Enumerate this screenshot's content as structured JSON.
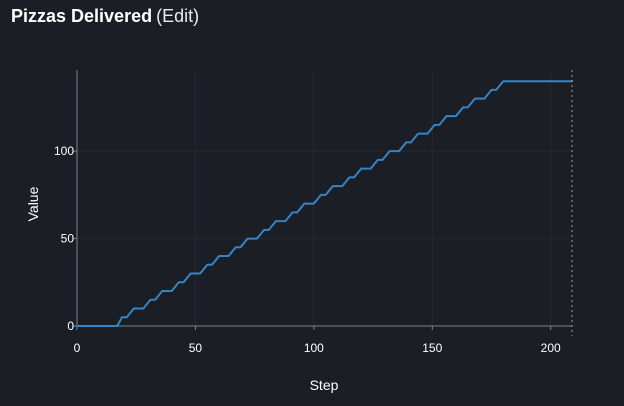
{
  "header": {
    "title": "Pizzas Delivered",
    "edit_label": "(Edit)"
  },
  "colors": {
    "background": "#1b1e25",
    "series_line": "#3584c6",
    "axis_line": "#7d818a",
    "grid_line": "#262a31",
    "cursor_line": "#9a9ea6",
    "text": "#ffffff"
  },
  "chart_data": {
    "type": "line",
    "xlabel": "Step",
    "ylabel": "Value",
    "xlim": [
      0,
      209
    ],
    "ylim": [
      0,
      140
    ],
    "x_ticks": [
      0,
      50,
      100,
      150,
      200
    ],
    "y_ticks": [
      0,
      50,
      100
    ],
    "grid": true,
    "legend": "none",
    "cursor_x": 209,
    "series": [
      {
        "step_shape": "staircase",
        "x": [
          0,
          17,
          19,
          21,
          24,
          26,
          28,
          31,
          33,
          36,
          38,
          40,
          43,
          45,
          48,
          50,
          52,
          55,
          57,
          60,
          62,
          64,
          67,
          69,
          72,
          74,
          76,
          79,
          81,
          84,
          86,
          88,
          91,
          93,
          96,
          98,
          100,
          103,
          105,
          108,
          110,
          112,
          115,
          117,
          120,
          122,
          124,
          127,
          129,
          132,
          134,
          136,
          139,
          141,
          144,
          146,
          148,
          151,
          153,
          156,
          158,
          160,
          163,
          165,
          168,
          170,
          172,
          175,
          177,
          180,
          182,
          184,
          187,
          189,
          192,
          194,
          196,
          199,
          201,
          204,
          206,
          208,
          209
        ],
        "y": [
          0,
          0,
          5,
          5,
          10,
          10,
          10,
          15,
          15,
          20,
          20,
          20,
          25,
          25,
          30,
          30,
          30,
          35,
          35,
          40,
          40,
          40,
          45,
          45,
          50,
          50,
          50,
          55,
          55,
          60,
          60,
          60,
          65,
          65,
          70,
          70,
          70,
          75,
          75,
          80,
          80,
          80,
          85,
          85,
          90,
          90,
          90,
          95,
          95,
          100,
          100,
          100,
          105,
          105,
          110,
          110,
          110,
          115,
          115,
          120,
          120,
          120,
          125,
          125,
          130,
          130,
          130,
          135,
          135,
          140,
          140,
          140,
          140,
          140,
          140,
          140,
          140,
          140,
          140,
          140,
          140,
          140,
          140
        ]
      }
    ]
  }
}
